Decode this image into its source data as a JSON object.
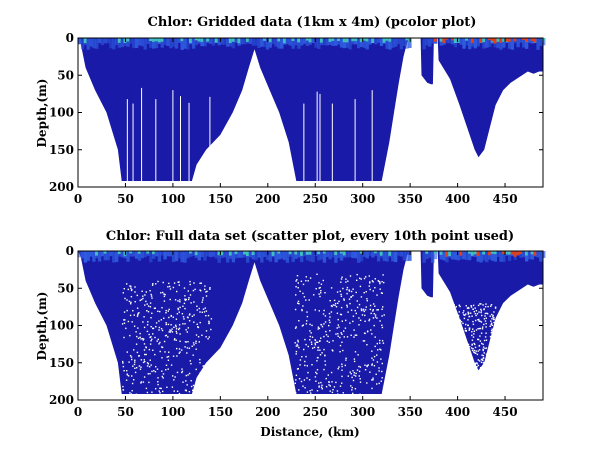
{
  "colors": {
    "background": "#1a1aa8",
    "surface": "#2e5be0",
    "high": "#e04020",
    "mid": "#40c0c0",
    "blank": "#ffffff"
  },
  "chart_data": [
    {
      "type": "heatmap",
      "title": "Chlor: Gridded data (1km x 4m) (pcolor plot)",
      "xlabel": "",
      "ylabel": "Depth,(m)",
      "xlim": [
        0,
        490
      ],
      "ylim": [
        200,
        0
      ],
      "xticks": [
        "0",
        "50",
        "100",
        "150",
        "200",
        "250",
        "300",
        "350",
        "400",
        "450"
      ],
      "yticks": [
        "0",
        "50",
        "100",
        "150",
        "200"
      ],
      "plot_style": "pcolor"
    },
    {
      "type": "scatter",
      "title": "Chlor: Full data set (scatter plot, every 10th point used)",
      "xlabel": "Distance, (km)",
      "ylabel": "Depth,(m)",
      "xlim": [
        0,
        490
      ],
      "ylim": [
        200,
        0
      ],
      "xticks": [
        "0",
        "50",
        "100",
        "150",
        "200",
        "250",
        "300",
        "350",
        "400",
        "450"
      ],
      "yticks": [
        "0",
        "50",
        "100",
        "150",
        "200"
      ],
      "plot_style": "scatter"
    }
  ]
}
